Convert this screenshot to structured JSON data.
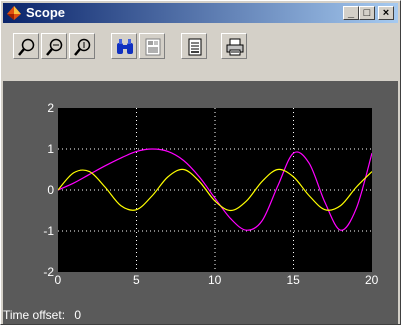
{
  "window": {
    "title": "Scope",
    "min_label": "_",
    "max_label": "□",
    "close_label": "×"
  },
  "toolbar": {
    "tools": [
      "zoom-icon",
      "zoom-x-icon",
      "zoom-y-icon",
      "autoscale-icon",
      "save-axes-icon",
      "parameters-icon",
      "print-icon"
    ]
  },
  "status": {
    "label": "Time offset:",
    "value": "0"
  },
  "chart_data": {
    "type": "line",
    "title": "",
    "xlabel": "",
    "ylabel": "",
    "xlim": [
      0,
      20
    ],
    "ylim": [
      -2,
      2
    ],
    "xticks": [
      "0",
      "5",
      "10",
      "15",
      "20"
    ],
    "yticks": [
      "2",
      "1",
      "0",
      "-1",
      "-2"
    ],
    "grid": true,
    "series": [
      {
        "color": "#ff00ff",
        "x": [
          0,
          1,
          2,
          3,
          4,
          5,
          6,
          7,
          8,
          9,
          10,
          11,
          12,
          13,
          14,
          15,
          16,
          17,
          18,
          19,
          20
        ],
        "values": [
          0,
          0.17,
          0.38,
          0.59,
          0.78,
          0.94,
          1.0,
          0.94,
          0.72,
          0.32,
          -0.2,
          -0.7,
          -0.98,
          -0.75,
          0.1,
          0.9,
          0.65,
          -0.3,
          -0.98,
          -0.45,
          0.9
        ]
      },
      {
        "color": "#ffff00",
        "x": [
          0,
          1,
          2,
          3,
          4,
          5,
          6,
          7,
          8,
          9,
          10,
          11,
          12,
          13,
          14,
          15,
          16,
          17,
          18,
          19,
          20
        ],
        "values": [
          0,
          0.42,
          0.45,
          0.07,
          -0.38,
          -0.48,
          -0.14,
          0.32,
          0.5,
          0.21,
          -0.27,
          -0.5,
          -0.27,
          0.21,
          0.5,
          0.32,
          -0.14,
          -0.48,
          -0.38,
          0.07,
          0.45
        ]
      }
    ]
  }
}
